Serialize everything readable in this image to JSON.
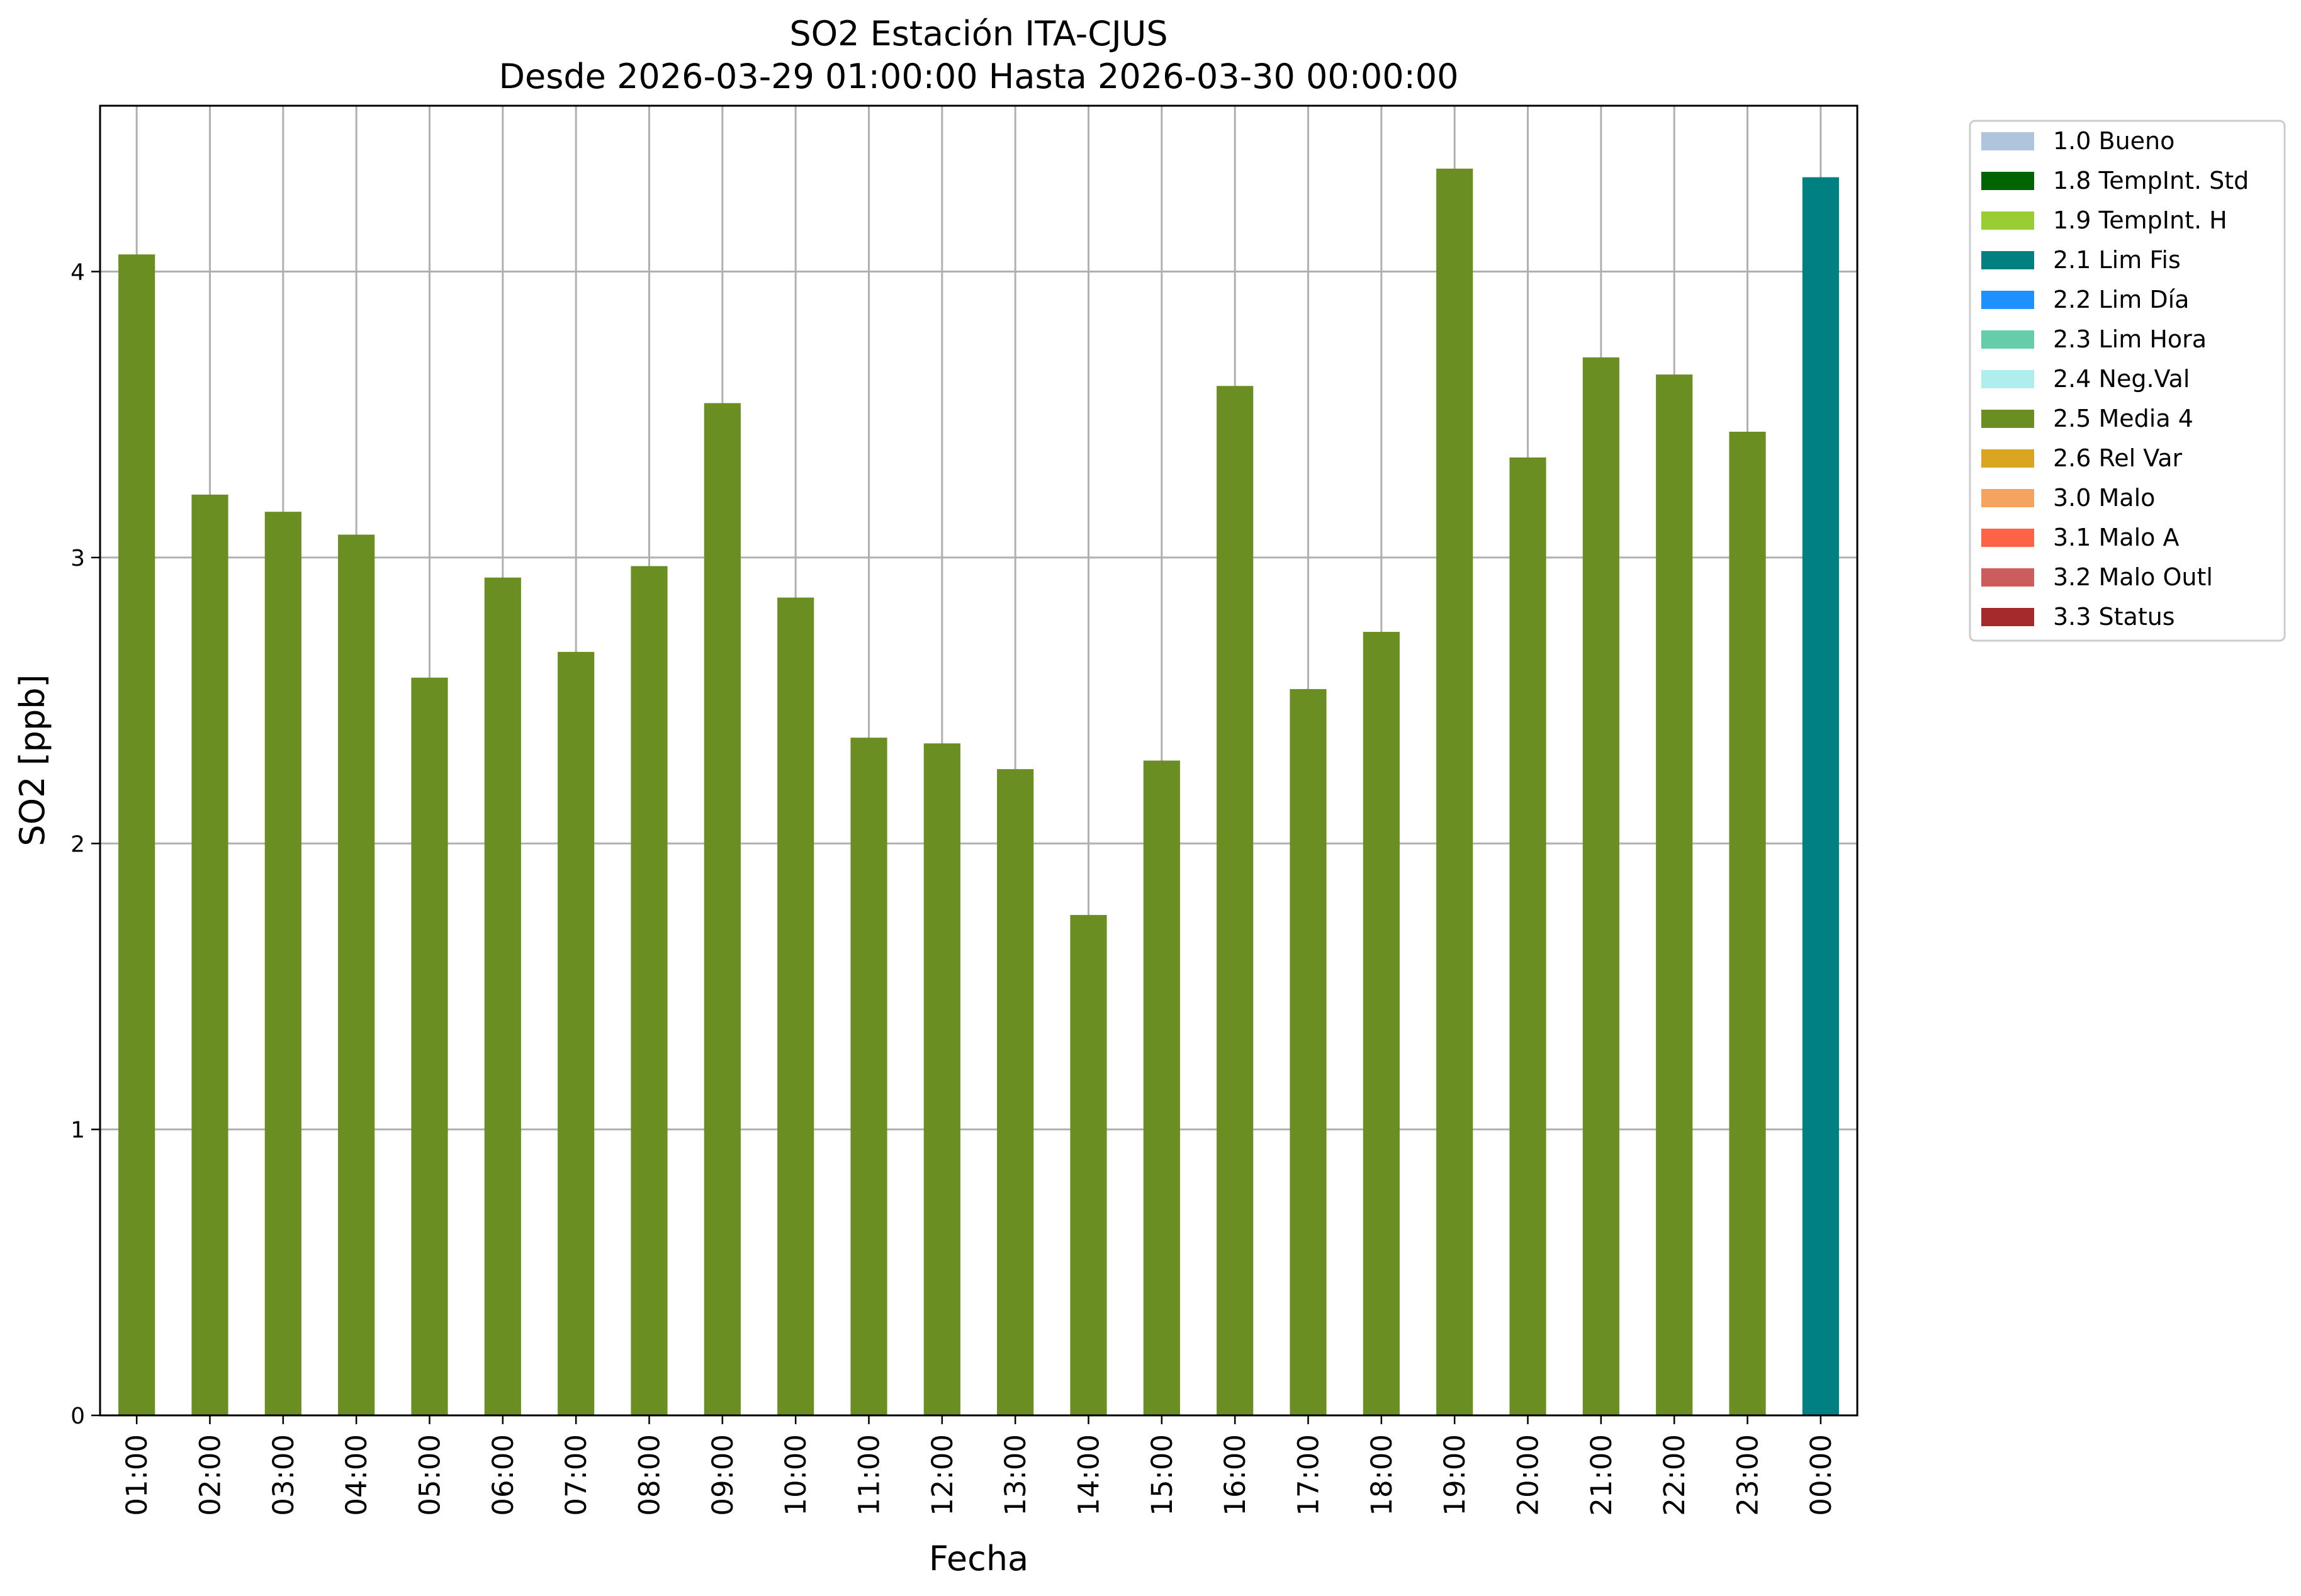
{
  "chart_data": {
    "type": "bar",
    "title_line1": "SO2 Estación ITA-CJUS",
    "title_line2": "Desde 2026-03-29 01:00:00 Hasta 2026-03-30 00:00:00",
    "xlabel": "Fecha",
    "ylabel": "SO2 [ppb]",
    "ylim": [
      0,
      4.58
    ],
    "yticks": [
      0,
      1,
      2,
      3,
      4
    ],
    "grid": true,
    "legend_position": "outside-top-right",
    "categories": [
      "01:00",
      "02:00",
      "03:00",
      "04:00",
      "05:00",
      "06:00",
      "07:00",
      "08:00",
      "09:00",
      "10:00",
      "11:00",
      "12:00",
      "13:00",
      "14:00",
      "15:00",
      "16:00",
      "17:00",
      "18:00",
      "19:00",
      "20:00",
      "21:00",
      "22:00",
      "23:00",
      "00:00"
    ],
    "values": [
      4.06,
      3.22,
      3.16,
      3.08,
      2.58,
      2.93,
      2.67,
      2.97,
      3.54,
      2.86,
      2.37,
      2.35,
      2.26,
      1.75,
      2.29,
      3.6,
      2.54,
      2.74,
      4.36,
      3.35,
      3.7,
      3.64,
      3.44,
      4.33
    ],
    "flags": [
      "2.5 Media 4",
      "2.5 Media 4",
      "2.5 Media 4",
      "2.5 Media 4",
      "2.5 Media 4",
      "2.5 Media 4",
      "2.5 Media 4",
      "2.5 Media 4",
      "2.5 Media 4",
      "2.5 Media 4",
      "2.5 Media 4",
      "2.5 Media 4",
      "2.5 Media 4",
      "2.5 Media 4",
      "2.5 Media 4",
      "2.5 Media 4",
      "2.5 Media 4",
      "2.5 Media 4",
      "2.5 Media 4",
      "2.5 Media 4",
      "2.5 Media 4",
      "2.5 Media 4",
      "2.5 Media 4",
      "2.1 Lim Fis"
    ],
    "legend": [
      {
        "label": "1.0 Bueno",
        "color": "#b0c4de"
      },
      {
        "label": "1.8 TempInt. Std",
        "color": "#006400"
      },
      {
        "label": "1.9 TempInt. H",
        "color": "#9acd32"
      },
      {
        "label": "2.1 Lim Fis",
        "color": "#008080"
      },
      {
        "label": "2.2 Lim Día",
        "color": "#1e90ff"
      },
      {
        "label": "2.3 Lim Hora",
        "color": "#66cdaa"
      },
      {
        "label": "2.4 Neg.Val",
        "color": "#afeeee"
      },
      {
        "label": "2.5 Media 4",
        "color": "#6b8e23"
      },
      {
        "label": "2.6 Rel Var",
        "color": "#daa520"
      },
      {
        "label": "3.0 Malo",
        "color": "#f4a460"
      },
      {
        "label": "3.1 Malo A",
        "color": "#ff6347"
      },
      {
        "label": "3.2 Malo Outl",
        "color": "#cd5c5c"
      },
      {
        "label": "3.3 Status",
        "color": "#a52a2a"
      }
    ]
  }
}
